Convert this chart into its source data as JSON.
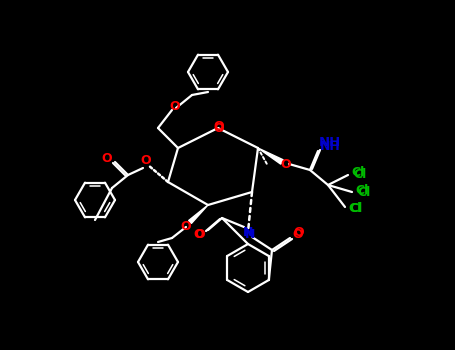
{
  "bg_color": "#000000",
  "bond_color": "#ffffff",
  "red_color": "#ff0000",
  "green_color": "#00bb00",
  "blue_color": "#0000cc",
  "ring_O_label": "O",
  "NH_label": "NH",
  "N_label": "N",
  "Cl_labels": [
    "Cl",
    "Cl",
    "Cl"
  ],
  "O_labels": [
    "O",
    "O",
    "O",
    "O",
    "O",
    "O"
  ],
  "carbonyl_labels": [
    "O",
    "O"
  ]
}
